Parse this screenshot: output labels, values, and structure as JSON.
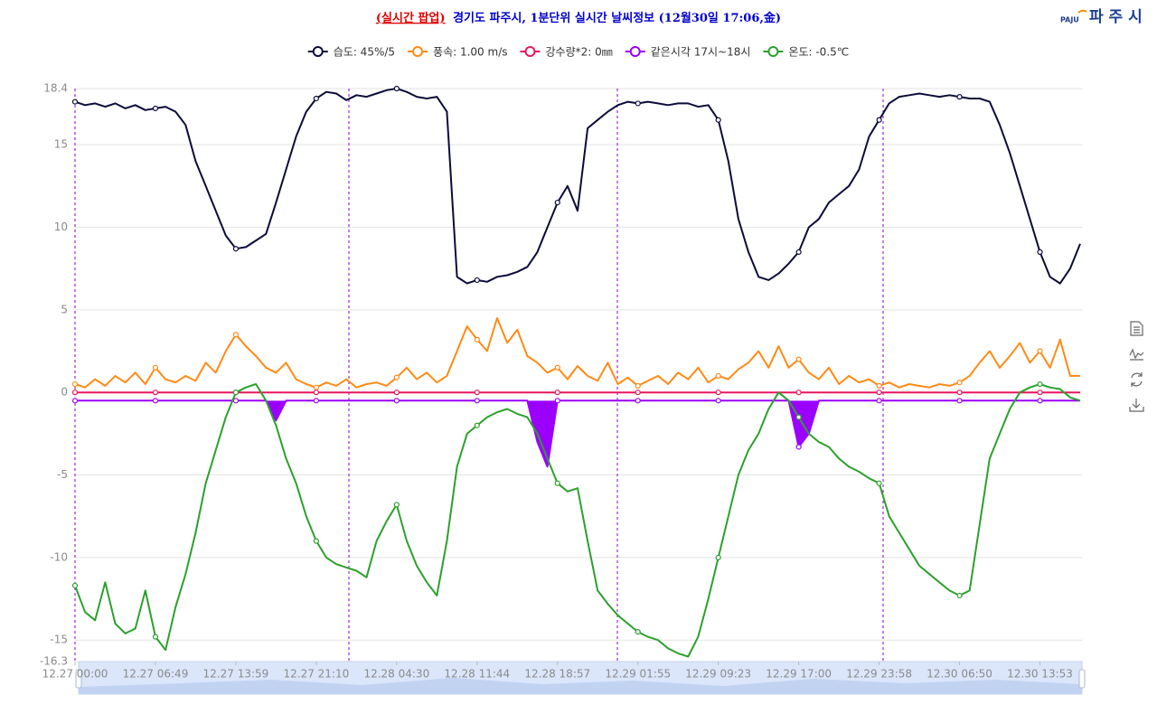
{
  "page": {
    "logo_mark": "PAJU",
    "logo_text": "파 주 시"
  },
  "chart_data": {
    "type": "line",
    "title_tag": "(실시간 팝업)",
    "title": "경기도 파주시, 1분단위 실시간 날씨정보 (12월30일 17:06,金)",
    "categories": [
      "12.27 00:00",
      null,
      null,
      null,
      null,
      null,
      null,
      null,
      "12.27 06:49",
      null,
      null,
      null,
      null,
      null,
      null,
      null,
      "12.27 13:59",
      null,
      null,
      null,
      null,
      null,
      null,
      null,
      "12.27 21:10",
      null,
      null,
      null,
      null,
      null,
      null,
      null,
      "12.28 04:30",
      null,
      null,
      null,
      null,
      null,
      null,
      null,
      "12.28 11:44",
      null,
      null,
      null,
      null,
      null,
      null,
      null,
      "12.28 18:57",
      null,
      null,
      null,
      null,
      null,
      null,
      null,
      "12.29 01:55",
      null,
      null,
      null,
      null,
      null,
      null,
      null,
      "12.29 09:23",
      null,
      null,
      null,
      null,
      null,
      null,
      null,
      "12.29 17:00",
      null,
      null,
      null,
      null,
      null,
      null,
      null,
      "12.29 23:58",
      null,
      null,
      null,
      null,
      null,
      null,
      null,
      "12.30 06:50",
      null,
      null,
      null,
      null,
      null,
      null,
      null,
      "12.30 13:53",
      null,
      null,
      null,
      null
    ],
    "ylim": [
      -16.3,
      18.4
    ],
    "yticks": [
      -16.3,
      -15,
      -10,
      -5,
      0,
      5,
      10,
      15,
      18.4
    ],
    "grid": true,
    "series": [
      {
        "name": "습도: 45%/5",
        "color": "#0b0b3b",
        "values": [
          17.6,
          17.4,
          17.5,
          17.3,
          17.5,
          17.2,
          17.4,
          17.1,
          17.2,
          17.3,
          17.0,
          16.2,
          14.0,
          12.5,
          11.0,
          9.5,
          8.7,
          8.8,
          9.2,
          9.6,
          11.5,
          13.5,
          15.5,
          17.0,
          17.8,
          18.2,
          18.1,
          17.7,
          18.0,
          17.9,
          18.1,
          18.3,
          18.4,
          18.2,
          17.9,
          17.8,
          17.9,
          17.0,
          7.0,
          6.6,
          6.8,
          6.7,
          7.0,
          7.1,
          7.3,
          7.6,
          8.5,
          10.0,
          11.5,
          12.5,
          11.0,
          16.0,
          16.5,
          17.0,
          17.4,
          17.6,
          17.5,
          17.6,
          17.5,
          17.4,
          17.5,
          17.5,
          17.3,
          17.4,
          16.5,
          14.0,
          10.5,
          8.5,
          7.0,
          6.8,
          7.2,
          7.8,
          8.5,
          10.0,
          10.5,
          11.5,
          12.0,
          12.5,
          13.5,
          15.5,
          16.5,
          17.5,
          17.9,
          18.0,
          18.1,
          18.0,
          17.9,
          18.0,
          17.9,
          17.8,
          17.8,
          17.6,
          16.2,
          14.5,
          12.5,
          10.5,
          8.5,
          7.0,
          6.6,
          7.5,
          9.0
        ]
      },
      {
        "name": "풍속: 1.00 m/s",
        "color": "#ff8a14",
        "values": [
          0.5,
          0.3,
          0.8,
          0.4,
          1.0,
          0.6,
          1.2,
          0.5,
          1.5,
          0.8,
          0.6,
          1.0,
          0.7,
          1.8,
          1.2,
          2.5,
          3.5,
          2.8,
          2.2,
          1.5,
          1.2,
          1.8,
          0.8,
          0.5,
          0.3,
          0.6,
          0.4,
          0.8,
          0.3,
          0.5,
          0.6,
          0.4,
          0.9,
          1.5,
          0.8,
          1.2,
          0.6,
          1.0,
          2.5,
          4.0,
          3.2,
          2.5,
          4.5,
          3.0,
          3.8,
          2.2,
          1.8,
          1.2,
          1.5,
          0.8,
          1.6,
          1.0,
          0.7,
          1.8,
          0.5,
          0.9,
          0.4,
          0.7,
          1.0,
          0.5,
          1.2,
          0.8,
          1.5,
          0.6,
          1.0,
          0.8,
          1.4,
          1.8,
          2.5,
          1.5,
          2.8,
          1.5,
          2.0,
          1.2,
          0.8,
          1.5,
          0.5,
          1.0,
          0.6,
          0.8,
          0.4,
          0.6,
          0.3,
          0.5,
          0.4,
          0.3,
          0.5,
          0.4,
          0.6,
          1.0,
          1.8,
          2.5,
          1.5,
          2.2,
          3.0,
          1.8,
          2.5,
          1.5,
          3.2,
          1.0,
          1.0
        ]
      },
      {
        "name": "강수량*2: 0㎜",
        "color": "#e8175d",
        "values": [
          0,
          0,
          0,
          0,
          0,
          0,
          0,
          0,
          0,
          0,
          0,
          0,
          0,
          0,
          0,
          0,
          0,
          0,
          0,
          0,
          0,
          0,
          0,
          0,
          0,
          0,
          0,
          0,
          0,
          0,
          0,
          0,
          0,
          0,
          0,
          0,
          0,
          0,
          0,
          0,
          0,
          0,
          0,
          0,
          0,
          0,
          0,
          0,
          0,
          0,
          0,
          0,
          0,
          0,
          0,
          0,
          0,
          0,
          0,
          0,
          0,
          0,
          0,
          0,
          0,
          0,
          0,
          0,
          0,
          0,
          0,
          0,
          0,
          0,
          0,
          0,
          0,
          0,
          0,
          0,
          0,
          0,
          0,
          0,
          0,
          0,
          0,
          0,
          0,
          0,
          0,
          0,
          0,
          0,
          0,
          0,
          0,
          0,
          0,
          0,
          0
        ]
      },
      {
        "name": "같은시각 17시~18시",
        "color": "#9b00ff",
        "area": true,
        "values": [
          -0.5,
          -0.5,
          -0.5,
          -0.5,
          -0.5,
          -0.5,
          -0.5,
          -0.5,
          -0.5,
          -0.5,
          -0.5,
          -0.5,
          -0.5,
          -0.5,
          -0.5,
          -0.5,
          -0.5,
          -0.5,
          -0.5,
          -0.5,
          -1.7,
          -0.5,
          -0.5,
          -0.5,
          -0.5,
          -0.5,
          -0.5,
          -0.5,
          -0.5,
          -0.5,
          -0.5,
          -0.5,
          -0.5,
          -0.5,
          -0.5,
          -0.5,
          -0.5,
          -0.5,
          -0.5,
          -0.5,
          -0.5,
          -0.5,
          -0.5,
          -0.5,
          -0.5,
          -0.5,
          -3.0,
          -4.5,
          -0.5,
          -0.5,
          -0.5,
          -0.5,
          -0.5,
          -0.5,
          -0.5,
          -0.5,
          -0.5,
          -0.5,
          -0.5,
          -0.5,
          -0.5,
          -0.5,
          -0.5,
          -0.5,
          -0.5,
          -0.5,
          -0.5,
          -0.5,
          -0.5,
          -0.5,
          -0.5,
          -0.5,
          -3.3,
          -2.5,
          -0.5,
          -0.5,
          -0.5,
          -0.5,
          -0.5,
          -0.5,
          -0.5,
          -0.5,
          -0.5,
          -0.5,
          -0.5,
          -0.5,
          -0.5,
          -0.5,
          -0.5,
          -0.5,
          -0.5,
          -0.5,
          -0.5,
          -0.5,
          -0.5,
          -0.5,
          -0.5,
          -0.5,
          -0.5,
          -0.5,
          -0.5
        ]
      },
      {
        "name": "온도: -0.5℃",
        "color": "#2ca02c",
        "values": [
          -11.7,
          -13.3,
          -13.8,
          -11.5,
          -14.0,
          -14.6,
          -14.3,
          -12.0,
          -14.8,
          -15.6,
          -13.0,
          -11.0,
          -8.5,
          -5.5,
          -3.5,
          -1.5,
          0.0,
          0.3,
          0.5,
          -0.5,
          -2.0,
          -4.0,
          -5.5,
          -7.5,
          -9.0,
          -10.0,
          -10.4,
          -10.6,
          -10.8,
          -11.2,
          -9.0,
          -7.8,
          -6.8,
          -9.0,
          -10.5,
          -11.5,
          -12.3,
          -9.0,
          -4.5,
          -2.5,
          -2.0,
          -1.5,
          -1.2,
          -1.0,
          -1.3,
          -1.5,
          -2.5,
          -4.0,
          -5.5,
          -6.0,
          -5.8,
          -9.0,
          -12.0,
          -12.8,
          -13.5,
          -14.0,
          -14.5,
          -14.8,
          -15.0,
          -15.5,
          -15.8,
          -16.0,
          -14.8,
          -12.5,
          -10.0,
          -7.5,
          -5.0,
          -3.5,
          -2.5,
          -1.0,
          0.0,
          -0.5,
          -1.5,
          -2.5,
          -3.0,
          -3.3,
          -4.0,
          -4.5,
          -4.8,
          -5.2,
          -5.5,
          -7.5,
          -8.5,
          -9.5,
          -10.5,
          -11.0,
          -11.5,
          -12.0,
          -12.3,
          -12.0,
          -8.0,
          -4.0,
          -2.5,
          -1.0,
          0.0,
          0.3,
          0.5,
          0.3,
          0.2,
          -0.3,
          -0.5
        ]
      }
    ]
  }
}
